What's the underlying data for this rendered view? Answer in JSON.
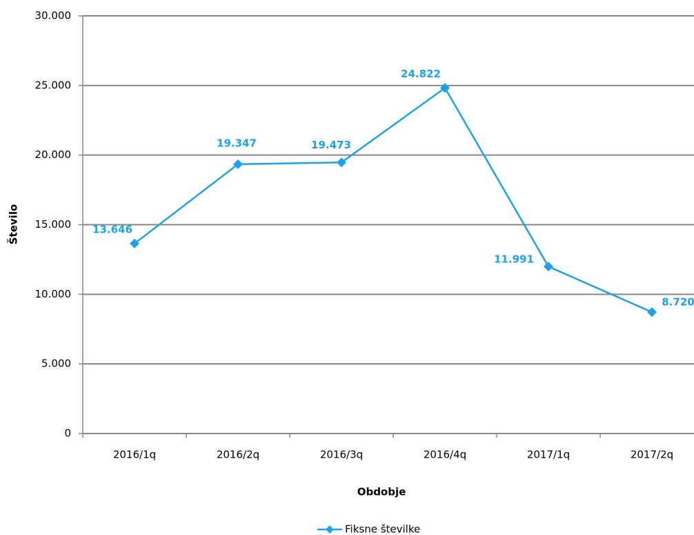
{
  "chart_data": {
    "type": "line",
    "x_label": "Obdobje",
    "y_label": "Število",
    "categories": [
      "2016/1q",
      "2016/2q",
      "2016/3q",
      "2016/4q",
      "2017/1q",
      "2017/2q"
    ],
    "series": [
      {
        "name": "Fiksne številke",
        "color": "#1ba1f2",
        "values": [
          13646,
          19347,
          19473,
          24822,
          11991,
          8720
        ],
        "value_labels": [
          "13.646",
          "19.347",
          "19.473",
          "24.822",
          "11.991",
          "8.720"
        ]
      }
    ],
    "ylim": [
      0,
      30000
    ],
    "yticks": [
      0,
      {
        "value": 5000,
        "label": "5.000"
      },
      {
        "value": 10000,
        "label": "10.000"
      },
      {
        "value": 15000,
        "label": "15.000"
      },
      {
        "value": 20000,
        "label": "20.000"
      },
      {
        "value": 25000,
        "label": "25.000"
      },
      {
        "value": 30000,
        "label": "30.000"
      }
    ],
    "grid": true,
    "legend": "bottom"
  }
}
